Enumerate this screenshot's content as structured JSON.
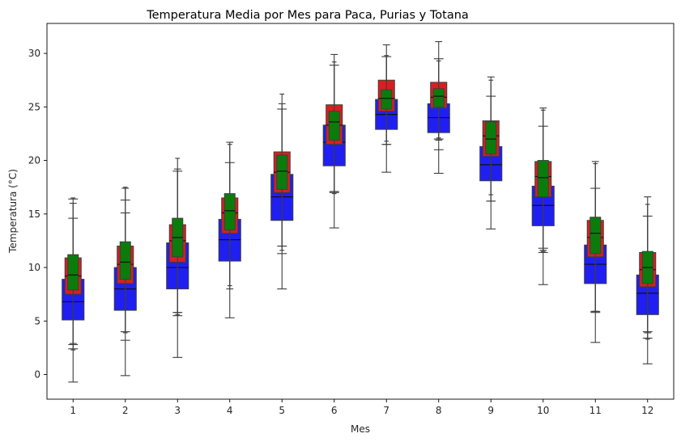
{
  "chart_data": {
    "type": "boxplot",
    "title": "Temperatura Media por Mes para Paca, Purias y Totana",
    "xlabel": "Mes",
    "ylabel": "Temperatura (°C)",
    "categories": [
      "1",
      "2",
      "3",
      "4",
      "5",
      "6",
      "7",
      "8",
      "9",
      "10",
      "11",
      "12"
    ],
    "ylim": [
      -2.3,
      32.8
    ],
    "yticks": [
      0,
      5,
      10,
      15,
      20,
      25,
      30
    ],
    "grid": false,
    "legend": "none",
    "series": [
      {
        "color": "#1f1ff2",
        "widthFactor": 1.0,
        "boxes": [
          {
            "wlo": -0.7,
            "q1": 5.1,
            "med": 6.8,
            "q3": 8.9,
            "whi": 14.6,
            "caps": [
              2.8,
              2.4,
              16.4
            ]
          },
          {
            "wlo": -0.1,
            "q1": 6.0,
            "med": 8.0,
            "q3": 10.0,
            "whi": 15.1,
            "caps": [
              3.2,
              4.0,
              16.3
            ]
          },
          {
            "wlo": 1.6,
            "q1": 8.0,
            "med": 10.0,
            "q3": 12.3,
            "whi": 19.0,
            "caps": [
              5.5,
              5.8
            ]
          },
          {
            "wlo": 5.3,
            "q1": 10.6,
            "med": 12.6,
            "q3": 14.5,
            "whi": 19.8,
            "caps": []
          },
          {
            "wlo": 8.0,
            "q1": 14.4,
            "med": 16.6,
            "q3": 18.7,
            "whi": 24.8,
            "caps": [
              12.0,
              11.3
            ]
          },
          {
            "wlo": 13.7,
            "q1": 19.5,
            "med": 21.7,
            "q3": 23.3,
            "whi": 28.9,
            "caps": [
              17.1,
              17.0
            ]
          },
          {
            "wlo": 18.9,
            "q1": 22.9,
            "med": 24.3,
            "q3": 25.7,
            "whi": 29.7,
            "caps": [
              21.5
            ]
          },
          {
            "wlo": 18.8,
            "q1": 22.6,
            "med": 24.0,
            "q3": 25.3,
            "whi": 29.5,
            "caps": [
              21.0,
              22.0
            ]
          },
          {
            "wlo": 13.6,
            "q1": 18.1,
            "med": 19.6,
            "q3": 21.3,
            "whi": 26.0,
            "caps": [
              16.2
            ]
          },
          {
            "wlo": 8.4,
            "q1": 13.9,
            "med": 15.8,
            "q3": 17.6,
            "whi": 23.2,
            "caps": [
              11.4,
              11.8
            ]
          },
          {
            "wlo": 3.0,
            "q1": 8.5,
            "med": 10.3,
            "q3": 12.1,
            "whi": 17.4,
            "caps": [
              5.8,
              5.9
            ]
          },
          {
            "wlo": 1.0,
            "q1": 5.6,
            "med": 7.6,
            "q3": 9.3,
            "whi": 14.8,
            "caps": [
              3.4,
              4.0
            ]
          }
        ]
      },
      {
        "color": "#d81f1f",
        "widthFactor": 0.74,
        "boxes": [
          {
            "wlo": 2.9,
            "q1": 7.5,
            "med": 9.2,
            "q3": 10.9,
            "whi": 16.0,
            "caps": []
          },
          {
            "wlo": 4.0,
            "q1": 8.5,
            "med": 10.3,
            "q3": 12.0,
            "whi": 17.4,
            "caps": []
          },
          {
            "wlo": 5.8,
            "q1": 10.5,
            "med": 12.5,
            "q3": 14.0,
            "whi": 19.2,
            "caps": []
          },
          {
            "wlo": 8.0,
            "q1": 13.2,
            "med": 15.1,
            "q3": 16.5,
            "whi": 21.7,
            "caps": []
          },
          {
            "wlo": 12.0,
            "q1": 17.0,
            "med": 18.9,
            "q3": 20.8,
            "whi": 25.3,
            "caps": []
          },
          {
            "wlo": 17.1,
            "q1": 21.5,
            "med": 23.3,
            "q3": 25.2,
            "whi": 29.9,
            "caps": []
          },
          {
            "wlo": 21.5,
            "q1": 24.6,
            "med": 25.8,
            "q3": 27.5,
            "whi": 30.8,
            "caps": []
          },
          {
            "wlo": 21.9,
            "q1": 24.9,
            "med": 25.9,
            "q3": 27.3,
            "whi": 31.1,
            "caps": []
          },
          {
            "wlo": 16.2,
            "q1": 20.4,
            "med": 22.3,
            "q3": 23.7,
            "whi": 27.8,
            "caps": []
          },
          {
            "wlo": 11.6,
            "q1": 16.6,
            "med": 18.5,
            "q3": 19.9,
            "whi": 24.9,
            "caps": []
          },
          {
            "wlo": 5.9,
            "q1": 11.0,
            "med": 12.8,
            "q3": 14.4,
            "whi": 19.9,
            "caps": []
          },
          {
            "wlo": 3.9,
            "q1": 8.2,
            "med": 9.8,
            "q3": 11.4,
            "whi": 16.6,
            "caps": []
          }
        ]
      },
      {
        "color": "#0b7c0b",
        "widthFactor": 0.48,
        "boxes": [
          {
            "wlo": 2.3,
            "q1": 7.9,
            "med": 9.3,
            "q3": 11.2,
            "whi": 16.5,
            "caps": []
          },
          {
            "wlo": 3.9,
            "q1": 8.9,
            "med": 10.5,
            "q3": 12.4,
            "whi": 17.5,
            "caps": []
          },
          {
            "wlo": 5.6,
            "q1": 11.0,
            "med": 12.8,
            "q3": 14.6,
            "whi": 20.2,
            "caps": []
          },
          {
            "wlo": 8.3,
            "q1": 13.5,
            "med": 15.3,
            "q3": 16.9,
            "whi": 21.5,
            "caps": []
          },
          {
            "wlo": 11.6,
            "q1": 17.3,
            "med": 19.0,
            "q3": 20.5,
            "whi": 26.2,
            "caps": []
          },
          {
            "wlo": 16.9,
            "q1": 21.9,
            "med": 23.6,
            "q3": 24.6,
            "whi": 29.2,
            "caps": []
          },
          {
            "wlo": 21.8,
            "q1": 24.8,
            "med": 25.8,
            "q3": 26.6,
            "whi": 29.8,
            "caps": []
          },
          {
            "wlo": 22.1,
            "q1": 25.0,
            "med": 26.0,
            "q3": 26.7,
            "whi": 29.3,
            "caps": []
          },
          {
            "wlo": 16.8,
            "q1": 20.6,
            "med": 22.0,
            "q3": 23.6,
            "whi": 27.5,
            "caps": []
          },
          {
            "wlo": 11.5,
            "q1": 16.6,
            "med": 18.4,
            "q3": 20.0,
            "whi": 24.7,
            "caps": []
          },
          {
            "wlo": 5.9,
            "q1": 11.3,
            "med": 13.2,
            "q3": 14.7,
            "whi": 19.7,
            "caps": []
          },
          {
            "wlo": 3.3,
            "q1": 8.5,
            "med": 10.0,
            "q3": 11.5,
            "whi": 15.9,
            "caps": []
          }
        ]
      }
    ]
  }
}
